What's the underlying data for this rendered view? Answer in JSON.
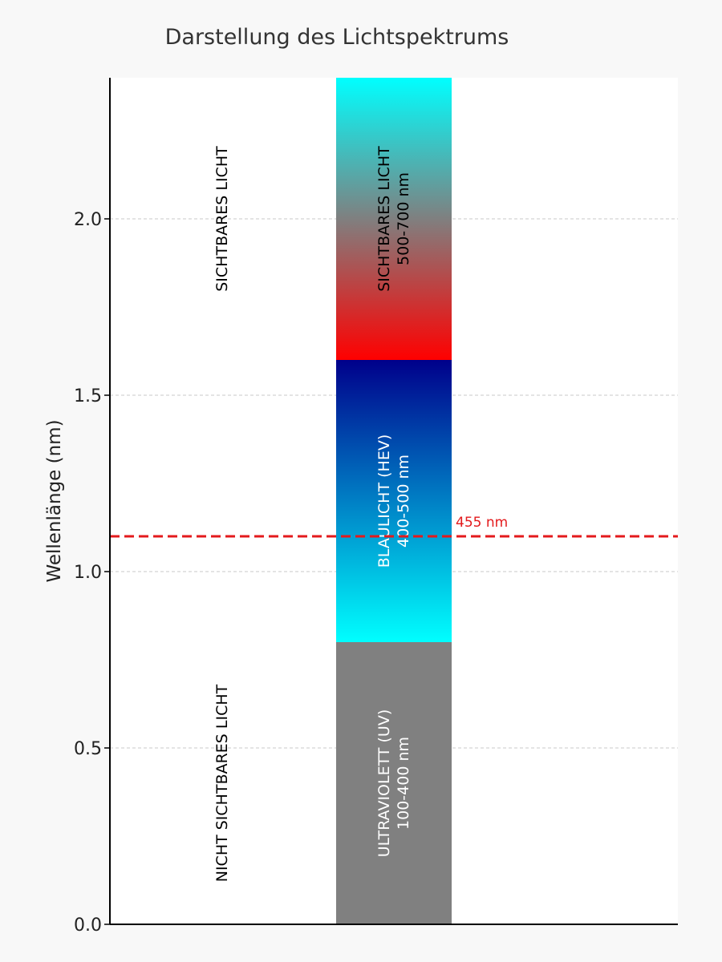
{
  "chart_data": {
    "type": "bar",
    "title": "Darstellung des Lichtspektrums",
    "xlabel": "",
    "ylabel": "Wellenlänge (nm)",
    "ylim": [
      0,
      2.4
    ],
    "yticks": [
      {
        "value": 0.0,
        "label": "0.0"
      },
      {
        "value": 0.5,
        "label": "0.5"
      },
      {
        "value": 1.0,
        "label": "1.0"
      },
      {
        "value": 1.5,
        "label": "1.5"
      },
      {
        "value": 2.0,
        "label": "2.0"
      }
    ],
    "grid": {
      "y": true,
      "x": false,
      "style": "dashed"
    },
    "bands": [
      {
        "name": "ULTRAVIOLETT (UV)",
        "range_label": "100-400 nm",
        "from": 0.0,
        "to": 0.8,
        "colors": [
          "#808080",
          "#808080"
        ],
        "text_color": "#ffffff"
      },
      {
        "name": "BLAULICHT (HEV)",
        "range_label": "400-500 nm",
        "from": 0.8,
        "to": 1.6,
        "colors": [
          "#00ffff",
          "#00008b"
        ],
        "text_color": "#ffffff"
      },
      {
        "name": "SICHTBARES LICHT",
        "range_label": "500-700 nm",
        "from": 1.6,
        "to": 2.4,
        "colors": [
          "#ff0000",
          "#00ffff"
        ],
        "text_color": "#000000"
      }
    ],
    "region_labels": [
      {
        "text": "NICHT SICHTBARES LICHT",
        "y": 0.4
      },
      {
        "text": "SICHTBARES LICHT",
        "y": 2.0
      }
    ],
    "reference_line": {
      "value": 1.1,
      "label": "455 nm",
      "color": "#e31a1c",
      "style": "dashed"
    }
  }
}
